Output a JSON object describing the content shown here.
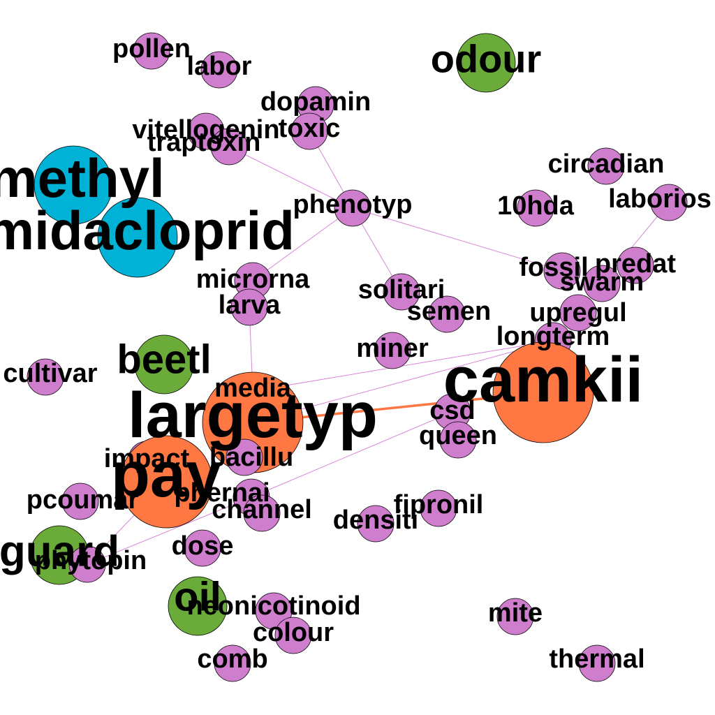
{
  "colors": {
    "pink": "#CF7ECE",
    "orange": "#FF7743",
    "green": "#6AAB3A",
    "blue": "#00B2D6",
    "edge_pink": "#D886D6",
    "edge_orange": "#FF7743"
  },
  "nodes": [
    {
      "id": "pollen",
      "label": "pollen",
      "color": "pink"
    },
    {
      "id": "labor",
      "label": "labor",
      "color": "pink"
    },
    {
      "id": "odour",
      "label": "odour",
      "color": "green"
    },
    {
      "id": "dopamin",
      "label": "dopamin",
      "color": "pink"
    },
    {
      "id": "vitellogenin",
      "label": "vitellogenin",
      "color": "pink"
    },
    {
      "id": "toxic",
      "label": "toxic",
      "color": "pink"
    },
    {
      "id": "traptoxin",
      "label": "traptoxin",
      "color": "pink"
    },
    {
      "id": "circadian",
      "label": "circadian",
      "color": "pink"
    },
    {
      "id": "methyl",
      "label": "methyl",
      "color": "blue"
    },
    {
      "id": "10hda",
      "label": "10hda",
      "color": "pink"
    },
    {
      "id": "laborios",
      "label": "laborios",
      "color": "pink"
    },
    {
      "id": "phenotyp",
      "label": "phenotyp",
      "color": "pink"
    },
    {
      "id": "imidacloprid",
      "label": "imidacloprid",
      "color": "blue"
    },
    {
      "id": "fossil",
      "label": "fossil",
      "color": "pink"
    },
    {
      "id": "predat",
      "label": "predat",
      "color": "pink"
    },
    {
      "id": "swarm",
      "label": "swarm",
      "color": "pink"
    },
    {
      "id": "microrna",
      "label": "microrna",
      "color": "pink"
    },
    {
      "id": "solitari",
      "label": "solitari",
      "color": "pink"
    },
    {
      "id": "larva",
      "label": "larva",
      "color": "pink"
    },
    {
      "id": "semen",
      "label": "semen",
      "color": "pink"
    },
    {
      "id": "upregul",
      "label": "upregul",
      "color": "pink"
    },
    {
      "id": "longterm",
      "label": "longterm",
      "color": "pink"
    },
    {
      "id": "miner",
      "label": "miner",
      "color": "pink"
    },
    {
      "id": "beetl",
      "label": "beetl",
      "color": "green"
    },
    {
      "id": "cultivar",
      "label": "cultivar",
      "color": "pink"
    },
    {
      "id": "camkii",
      "label": "camkii",
      "color": "orange"
    },
    {
      "id": "media",
      "label": "media",
      "color": "pink"
    },
    {
      "id": "largetyp",
      "label": "largetyp",
      "color": "orange"
    },
    {
      "id": "csd",
      "label": "csd",
      "color": "pink"
    },
    {
      "id": "queen",
      "label": "queen",
      "color": "pink"
    },
    {
      "id": "impact",
      "label": "impact",
      "color": "pink"
    },
    {
      "id": "bacillu",
      "label": "bacillu",
      "color": "pink"
    },
    {
      "id": "pay",
      "label": "pay",
      "color": "orange"
    },
    {
      "id": "pcoumar",
      "label": "pcoumar",
      "color": "pink"
    },
    {
      "id": "phernai",
      "label": "phernai",
      "color": "pink"
    },
    {
      "id": "channel",
      "label": "channel",
      "color": "pink"
    },
    {
      "id": "fipronil",
      "label": "fipronil",
      "color": "pink"
    },
    {
      "id": "densiti",
      "label": "densiti",
      "color": "pink"
    },
    {
      "id": "guard",
      "label": "guard",
      "color": "green"
    },
    {
      "id": "dose",
      "label": "dose",
      "color": "pink"
    },
    {
      "id": "phytopin",
      "label": "phytopin",
      "color": "pink"
    },
    {
      "id": "oil",
      "label": "oil",
      "color": "green"
    },
    {
      "id": "neonicotinoid",
      "label": "neonicotinoid",
      "color": "pink"
    },
    {
      "id": "mite",
      "label": "mite",
      "color": "pink"
    },
    {
      "id": "colour",
      "label": "colour",
      "color": "pink"
    },
    {
      "id": "comb",
      "label": "comb",
      "color": "pink"
    },
    {
      "id": "thermal",
      "label": "thermal",
      "color": "pink"
    }
  ],
  "edges": [
    {
      "source": "largetyp",
      "target": "camkii",
      "color": "edge_orange",
      "weight": 3
    },
    {
      "source": "traptoxin",
      "target": "phenotyp",
      "color": "edge_pink",
      "weight": 1
    },
    {
      "source": "toxic",
      "target": "phenotyp",
      "color": "edge_pink",
      "weight": 1
    },
    {
      "source": "phenotyp",
      "target": "solitari",
      "color": "edge_pink",
      "weight": 1
    },
    {
      "source": "phenotyp",
      "target": "fossil",
      "color": "edge_pink",
      "weight": 1
    },
    {
      "source": "phenotyp",
      "target": "microrna",
      "color": "edge_pink",
      "weight": 1
    },
    {
      "source": "laborios",
      "target": "swarm",
      "color": "edge_pink",
      "weight": 1
    },
    {
      "source": "larva",
      "target": "media",
      "color": "edge_pink",
      "weight": 1
    },
    {
      "source": "longterm",
      "target": "largetyp",
      "color": "edge_pink",
      "weight": 1
    },
    {
      "source": "longterm",
      "target": "media",
      "color": "edge_pink",
      "weight": 1
    },
    {
      "source": "csd",
      "target": "phernai",
      "color": "edge_pink",
      "weight": 1
    },
    {
      "source": "phernai",
      "target": "phytopin",
      "color": "edge_pink",
      "weight": 1
    },
    {
      "source": "pay",
      "target": "phytopin",
      "color": "edge_pink",
      "weight": 1
    }
  ]
}
